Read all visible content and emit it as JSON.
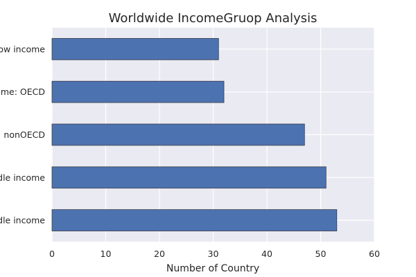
{
  "chart_data": {
    "type": "bar",
    "orientation": "horizontal",
    "title": "Worldwide IncomeGruop Analysis",
    "xlabel": "Number of Country",
    "ylabel": "",
    "categories": [
      "ow income",
      "me: OECD",
      "nonOECD",
      "dle income",
      "dle income"
    ],
    "values": [
      31,
      32,
      47,
      51,
      53
    ],
    "xlim": [
      0,
      60
    ],
    "xticks": [
      0,
      10,
      20,
      30,
      40,
      50,
      60
    ],
    "grid": true,
    "colors": {
      "bar": "#4c72b0",
      "plot_background": "#eaeaf2",
      "grid": "#ffffff"
    }
  }
}
